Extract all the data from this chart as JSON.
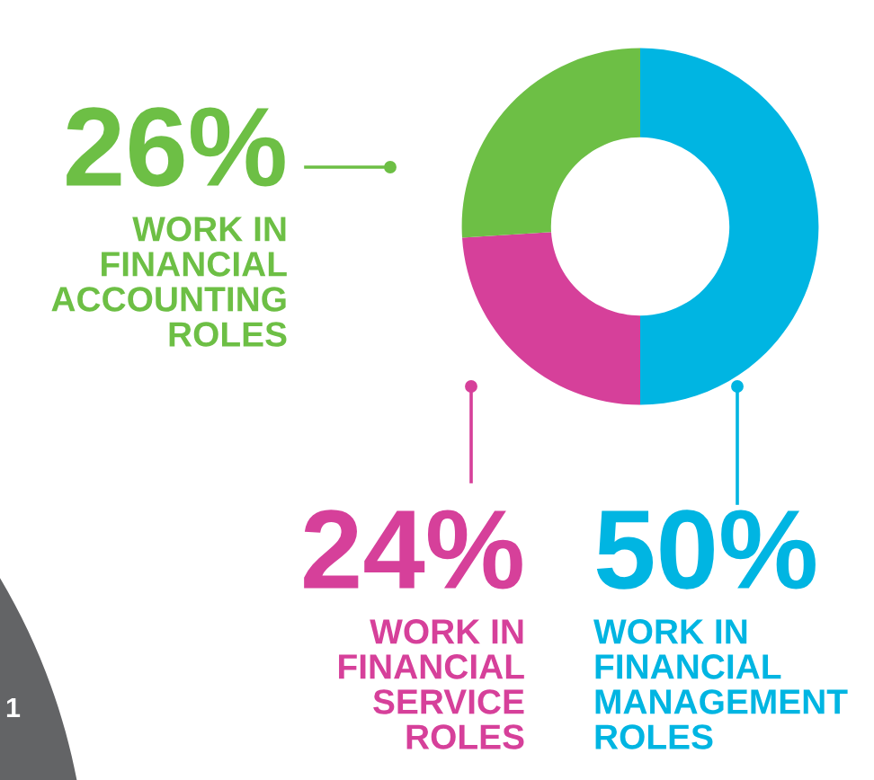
{
  "chart_data": {
    "type": "donut",
    "categories": [
      "WORK IN\nFINANCIAL\nMANAGEMENT\nROLES",
      "WORK IN\nFINANCIAL\nSERVICE\nROLES",
      "WORK IN\nFINANCIAL\nACCOUNTING\nROLES"
    ],
    "values": [
      50,
      24,
      26
    ],
    "value_labels": [
      "50%",
      "24%",
      "26%"
    ],
    "colors": [
      "#00b5e2",
      "#d6409a",
      "#6dbf45"
    ],
    "annotations": [
      "1"
    ]
  }
}
